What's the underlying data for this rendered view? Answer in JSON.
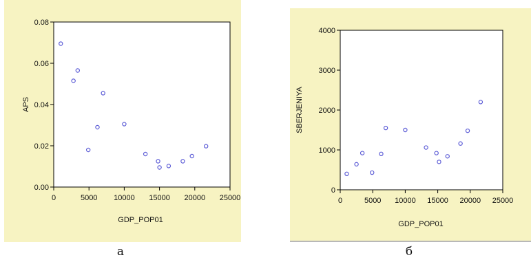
{
  "colors": {
    "panel_background": "#f7f3c2",
    "plot_background": "#ffffff",
    "axis": "#000000",
    "marker": "#5c5cd6"
  },
  "captions": [
    "а",
    "б"
  ],
  "chart_data": [
    {
      "type": "scatter",
      "title": "",
      "xlabel": "GDP_POP01",
      "ylabel": "APS",
      "xlim": [
        0,
        25000
      ],
      "ylim": [
        0,
        0.08
      ],
      "xticks": [
        "0",
        "5000",
        "10000",
        "15000",
        "20000",
        "25000"
      ],
      "yticks": [
        "0.00",
        "0.02",
        "0.04",
        "0.06",
        "0.08"
      ],
      "grid": false,
      "marker": "open-circle",
      "x": [
        1000,
        2800,
        3400,
        4900,
        6200,
        7000,
        10000,
        13000,
        14800,
        15000,
        16300,
        18300,
        19600,
        21600
      ],
      "y": [
        0.0695,
        0.0515,
        0.0565,
        0.018,
        0.029,
        0.0455,
        0.0305,
        0.016,
        0.0125,
        0.0095,
        0.0102,
        0.0125,
        0.015,
        0.0198
      ]
    },
    {
      "type": "scatter",
      "title": "",
      "xlabel": "GDP_POP01",
      "ylabel": "SBERJENIYA",
      "xlim": [
        0,
        25000
      ],
      "ylim": [
        0,
        4000
      ],
      "xticks": [
        "0",
        "5000",
        "10000",
        "15000",
        "20000",
        "25000"
      ],
      "yticks": [
        "0",
        "1000",
        "2000",
        "3000",
        "4000"
      ],
      "grid": false,
      "marker": "open-circle",
      "x": [
        1000,
        2500,
        3400,
        4900,
        6300,
        7000,
        10000,
        13200,
        14800,
        15200,
        16500,
        18500,
        19600,
        21600
      ],
      "y": [
        400,
        640,
        920,
        430,
        900,
        1550,
        1500,
        1060,
        920,
        700,
        840,
        1160,
        1480,
        2200
      ]
    }
  ]
}
